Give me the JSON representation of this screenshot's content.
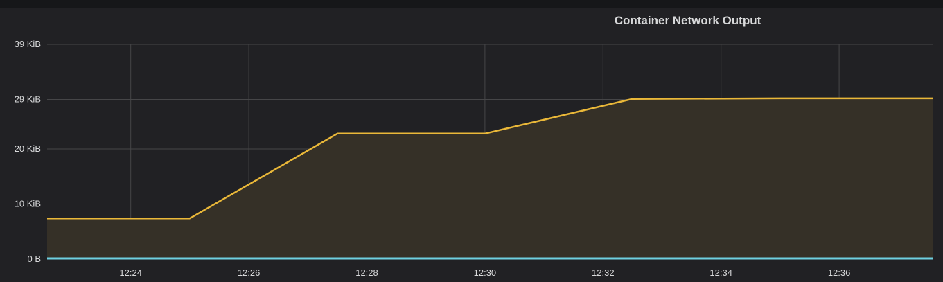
{
  "panel": {
    "title": "Container Network Output"
  },
  "colors": {
    "background": "#212124",
    "grid": "#464648",
    "series_output": "#eab839",
    "series_output_fill": "#353027",
    "series_baseline": "#6ed0e0"
  },
  "chart_data": {
    "type": "area",
    "title": "Container Network Output",
    "xlabel": "",
    "ylabel": "",
    "x_tick_labels": [
      "12:24",
      "12:26",
      "12:28",
      "12:30",
      "12:32",
      "12:34",
      "12:36"
    ],
    "y_tick_labels": [
      "0 B",
      "10 KiB",
      "20 KiB",
      "29 KiB",
      "39 KiB"
    ],
    "y_tick_values_kib": [
      0,
      10,
      20,
      29,
      39
    ],
    "xlim": [
      "12:22:35",
      "12:37:35"
    ],
    "ylim_kib": [
      0,
      39
    ],
    "grid": true,
    "legend": "none",
    "series": [
      {
        "x": [
          "12:22:35",
          "12:25:00",
          "12:27:30",
          "12:30:00",
          "12:32:30",
          "12:35:00",
          "12:37:35"
        ],
        "values_kib": [
          7.4,
          7.4,
          22.8,
          22.8,
          29.1,
          29.2,
          29.2
        ]
      },
      {
        "x": [
          "12:22:35",
          "12:37:35"
        ],
        "values_kib": [
          0,
          0
        ]
      }
    ]
  }
}
